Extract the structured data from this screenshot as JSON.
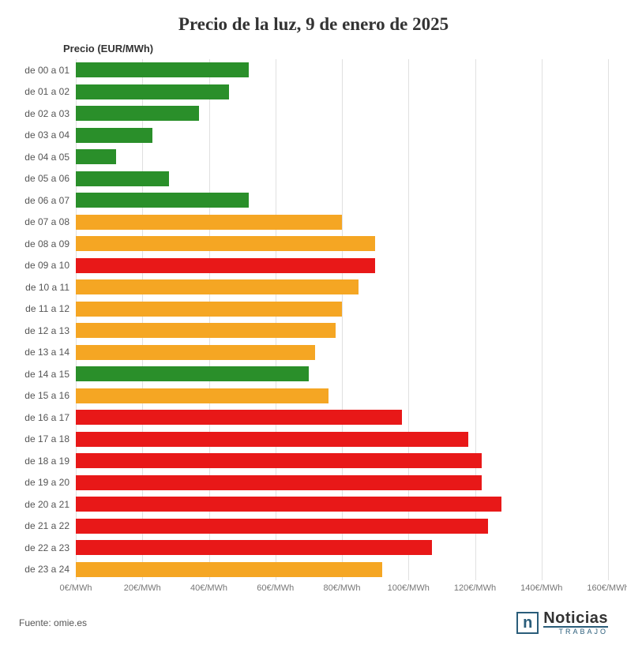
{
  "chart": {
    "type": "bar-horizontal",
    "title": "Precio de la luz, 9 de enero de 2025",
    "title_fontsize": 23,
    "title_color": "#333333",
    "ylabel": "Precio (EUR/MWh)",
    "ylabel_fontsize": 13,
    "background_color": "#ffffff",
    "grid_color": "#e0e0e0",
    "label_fontsize": 12,
    "tick_fontsize": 11,
    "xlim": [
      0,
      160
    ],
    "xtick_step": 20,
    "xtick_unit": "€/MWh",
    "xticks": [
      0,
      20,
      40,
      60,
      80,
      100,
      120,
      140,
      160
    ],
    "bar_width_ratio": 0.68,
    "colors": {
      "green": "#2a8f2a",
      "orange": "#f5a623",
      "red": "#e81818"
    },
    "categories": [
      "de 00 a 01",
      "de 01 a 02",
      "de 02 a 03",
      "de 03 a 04",
      "de 04 a 05",
      "de 05 a 06",
      "de 06 a 07",
      "de 07 a 08",
      "de 08 a 09",
      "de 09 a 10",
      "de 10 a 11",
      "de 11 a 12",
      "de 12 a 13",
      "de 13 a 14",
      "de 14 a 15",
      "de 15 a 16",
      "de 16 a 17",
      "de 17 a 18",
      "de 18 a 19",
      "de 19 a 20",
      "de 20 a 21",
      "de 21 a 22",
      "de 22 a 23",
      "de 23 a 24"
    ],
    "values": [
      52,
      46,
      37,
      23,
      12,
      28,
      52,
      80,
      90,
      90,
      85,
      80,
      78,
      72,
      70,
      76,
      98,
      118,
      122,
      122,
      128,
      124,
      107,
      92
    ],
    "bar_color_keys": [
      "green",
      "green",
      "green",
      "green",
      "green",
      "green",
      "green",
      "orange",
      "orange",
      "red",
      "orange",
      "orange",
      "orange",
      "orange",
      "green",
      "orange",
      "red",
      "red",
      "red",
      "red",
      "red",
      "red",
      "red",
      "orange"
    ]
  },
  "footer": {
    "source": "Fuente: omie.es",
    "source_fontsize": 12,
    "brand_main": "Noticias",
    "brand_sub": "TRABAJO",
    "brand_icon_letter": "n",
    "brand_main_fontsize": 20,
    "brand_sub_fontsize": 9
  }
}
